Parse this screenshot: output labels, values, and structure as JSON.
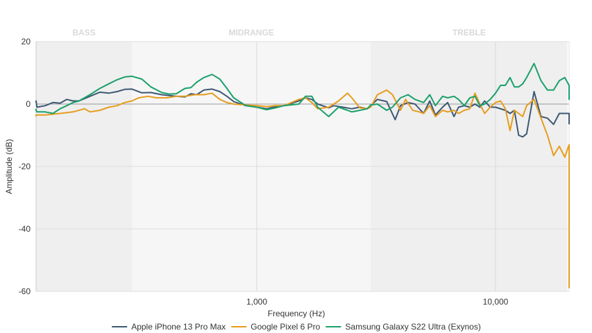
{
  "chart_data": {
    "type": "line",
    "title": "",
    "xlabel": "Frequency (Hz)",
    "ylabel": "Amplitude (dB)",
    "x_scale": "log",
    "xlim": [
      100,
      20000
    ],
    "ylim": [
      -60,
      20
    ],
    "y_ticks": [
      20,
      0,
      -20,
      -40,
      -60
    ],
    "x_ticks": [
      {
        "value": 1000,
        "label": "1,000"
      },
      {
        "value": 10000,
        "label": "10,000"
      }
    ],
    "bands": [
      {
        "label": "BASS",
        "from": 100,
        "to": 300,
        "shade": "#efefef"
      },
      {
        "label": "MIDRANGE",
        "from": 300,
        "to": 3000,
        "shade": "#f6f6f6"
      },
      {
        "label": "TREBLE",
        "from": 3000,
        "to": 20000,
        "shade": "#efefef"
      }
    ],
    "legend": "bottom-center",
    "series": [
      {
        "name": "Apple iPhone 13 Pro Max",
        "color": "#3d5873",
        "points": [
          [
            100,
            0.5
          ],
          [
            110,
            1
          ],
          [
            120,
            -1
          ],
          [
            130,
            -0.5
          ],
          [
            140,
            0.5
          ],
          [
            150,
            0.3
          ],
          [
            160,
            1.5
          ],
          [
            170,
            1
          ],
          [
            180,
            1
          ],
          [
            200,
            2.5
          ],
          [
            220,
            3.8
          ],
          [
            240,
            3.5
          ],
          [
            260,
            4
          ],
          [
            280,
            4.7
          ],
          [
            300,
            4.8
          ],
          [
            330,
            3.6
          ],
          [
            360,
            3.7
          ],
          [
            400,
            3
          ],
          [
            430,
            2.7
          ],
          [
            460,
            2.5
          ],
          [
            500,
            2.3
          ],
          [
            530,
            3.3
          ],
          [
            560,
            3
          ],
          [
            600,
            4.5
          ],
          [
            650,
            4.8
          ],
          [
            700,
            4
          ],
          [
            750,
            2.5
          ],
          [
            800,
            0.8
          ],
          [
            900,
            -0.5
          ],
          [
            1000,
            -1
          ],
          [
            1100,
            -1.5
          ],
          [
            1200,
            -0.8
          ],
          [
            1300,
            -0.5
          ],
          [
            1500,
            1
          ],
          [
            1600,
            2
          ],
          [
            1700,
            1.5
          ],
          [
            1800,
            0
          ],
          [
            2000,
            -1.2
          ],
          [
            2100,
            -0.5
          ],
          [
            2300,
            -1
          ],
          [
            2500,
            -1.5
          ],
          [
            2700,
            -1
          ],
          [
            2900,
            -1.5
          ],
          [
            3000,
            -0.5
          ],
          [
            3200,
            1.5
          ],
          [
            3500,
            0.8
          ],
          [
            3800,
            -5
          ],
          [
            4000,
            -0.5
          ],
          [
            4300,
            0.5
          ],
          [
            4600,
            0
          ],
          [
            5000,
            -3
          ],
          [
            5300,
            1
          ],
          [
            5600,
            -3.5
          ],
          [
            6000,
            -1
          ],
          [
            6300,
            0.5
          ],
          [
            6700,
            -4
          ],
          [
            7000,
            -1
          ],
          [
            7400,
            -0.5
          ],
          [
            7800,
            -1
          ],
          [
            8200,
            0
          ],
          [
            8600,
            -1
          ],
          [
            9000,
            1
          ],
          [
            9500,
            -1
          ],
          [
            10000,
            -1
          ],
          [
            11000,
            -2
          ],
          [
            11500,
            -3
          ],
          [
            12000,
            -2
          ],
          [
            12500,
            -10
          ],
          [
            13000,
            -10.5
          ],
          [
            13500,
            -9.5
          ],
          [
            14500,
            4
          ],
          [
            15500,
            -4
          ],
          [
            16500,
            -4.5
          ],
          [
            17500,
            -6.5
          ],
          [
            18500,
            -3
          ],
          [
            19500,
            -3
          ],
          [
            20500,
            -3
          ],
          [
            22000,
            -6.2
          ],
          [
            23000,
            -6.5
          ]
        ]
      },
      {
        "name": "Google Pixel 6 Pro",
        "color": "#e69d1e",
        "points": [
          [
            100,
            -4
          ],
          [
            110,
            -3.5
          ],
          [
            120,
            -3.5
          ],
          [
            130,
            -3.5
          ],
          [
            150,
            -3
          ],
          [
            170,
            -2.5
          ],
          [
            190,
            -1.5
          ],
          [
            200,
            -2.5
          ],
          [
            220,
            -2
          ],
          [
            240,
            -1
          ],
          [
            260,
            -0.5
          ],
          [
            280,
            0.5
          ],
          [
            300,
            1
          ],
          [
            320,
            2
          ],
          [
            350,
            2.5
          ],
          [
            380,
            2
          ],
          [
            420,
            2
          ],
          [
            460,
            2.5
          ],
          [
            500,
            2.5
          ],
          [
            550,
            3
          ],
          [
            600,
            3
          ],
          [
            650,
            3.5
          ],
          [
            700,
            1.5
          ],
          [
            750,
            0.5
          ],
          [
            800,
            0
          ],
          [
            900,
            -0.3
          ],
          [
            1000,
            -0.5
          ],
          [
            1100,
            -0.8
          ],
          [
            1200,
            -0.5
          ],
          [
            1300,
            -0.5
          ],
          [
            1500,
            1.5
          ],
          [
            1600,
            2
          ],
          [
            1700,
            0.5
          ],
          [
            1800,
            -1.5
          ],
          [
            2000,
            -1
          ],
          [
            2200,
            1
          ],
          [
            2400,
            3.5
          ],
          [
            2500,
            2
          ],
          [
            2700,
            -1.2
          ],
          [
            2900,
            -1.5
          ],
          [
            3000,
            -1
          ],
          [
            3200,
            3
          ],
          [
            3500,
            4.5
          ],
          [
            3700,
            3
          ],
          [
            4000,
            -2
          ],
          [
            4200,
            1.5
          ],
          [
            4500,
            -2
          ],
          [
            4800,
            -2.5
          ],
          [
            5000,
            -3
          ],
          [
            5300,
            -0.5
          ],
          [
            5600,
            -4
          ],
          [
            6000,
            -2
          ],
          [
            6300,
            -2.5
          ],
          [
            6700,
            -2
          ],
          [
            7000,
            -3
          ],
          [
            7400,
            -2
          ],
          [
            7800,
            -1.5
          ],
          [
            8200,
            3.5
          ],
          [
            8600,
            0
          ],
          [
            9000,
            -3
          ],
          [
            9500,
            -1
          ],
          [
            10000,
            0.5
          ],
          [
            10500,
            1
          ],
          [
            11000,
            -1.5
          ],
          [
            11500,
            -8.5
          ],
          [
            12000,
            -2
          ],
          [
            12500,
            -3
          ],
          [
            13000,
            -4
          ],
          [
            13500,
            -0.5
          ],
          [
            14500,
            1.5
          ],
          [
            15500,
            -4.5
          ],
          [
            16500,
            -10
          ],
          [
            17500,
            -16.5
          ],
          [
            18500,
            -13.5
          ],
          [
            19500,
            -17
          ],
          [
            20500,
            -13
          ],
          [
            21000,
            -59
          ]
        ]
      },
      {
        "name": "Samsung Galaxy S22 Ultra (Exynos)",
        "color": "#1aa06a",
        "points": [
          [
            100,
            -1.5
          ],
          [
            110,
            -2
          ],
          [
            120,
            -2.5
          ],
          [
            130,
            -2.5
          ],
          [
            140,
            -3
          ],
          [
            150,
            -1.5
          ],
          [
            160,
            -0.5
          ],
          [
            170,
            0.5
          ],
          [
            180,
            1
          ],
          [
            200,
            3
          ],
          [
            220,
            5
          ],
          [
            240,
            6.5
          ],
          [
            260,
            7.8
          ],
          [
            280,
            8.7
          ],
          [
            300,
            8.9
          ],
          [
            330,
            8
          ],
          [
            360,
            5.5
          ],
          [
            400,
            3.7
          ],
          [
            430,
            3.2
          ],
          [
            460,
            3.3
          ],
          [
            500,
            5
          ],
          [
            530,
            5.3
          ],
          [
            560,
            7
          ],
          [
            600,
            8.5
          ],
          [
            650,
            9.5
          ],
          [
            700,
            8
          ],
          [
            750,
            5
          ],
          [
            800,
            2
          ],
          [
            900,
            -0.5
          ],
          [
            1000,
            -1
          ],
          [
            1100,
            -1.8
          ],
          [
            1200,
            -1.2
          ],
          [
            1300,
            -0.5
          ],
          [
            1500,
            0
          ],
          [
            1600,
            2.5
          ],
          [
            1700,
            2.5
          ],
          [
            1800,
            -1
          ],
          [
            2000,
            -4
          ],
          [
            2200,
            -1
          ],
          [
            2400,
            -2
          ],
          [
            2500,
            -2.5
          ],
          [
            2700,
            -2
          ],
          [
            2900,
            -1.5
          ],
          [
            3000,
            -0.3
          ],
          [
            3200,
            0
          ],
          [
            3500,
            -2
          ],
          [
            3700,
            -1
          ],
          [
            4000,
            2
          ],
          [
            4300,
            3
          ],
          [
            4600,
            1.5
          ],
          [
            5000,
            0.5
          ],
          [
            5300,
            3
          ],
          [
            5600,
            -0.5
          ],
          [
            6000,
            2.5
          ],
          [
            6300,
            2
          ],
          [
            6700,
            2.5
          ],
          [
            7000,
            1.5
          ],
          [
            7400,
            -0.5
          ],
          [
            7800,
            2
          ],
          [
            8200,
            2.5
          ],
          [
            8600,
            -0.5
          ],
          [
            9000,
            0
          ],
          [
            9500,
            1.5
          ],
          [
            10000,
            3.5
          ],
          [
            10500,
            6
          ],
          [
            11000,
            6
          ],
          [
            11500,
            8.5
          ],
          [
            12000,
            5.5
          ],
          [
            12500,
            5.5
          ],
          [
            13000,
            6.5
          ],
          [
            13500,
            8.5
          ],
          [
            14500,
            13
          ],
          [
            15500,
            7.5
          ],
          [
            16500,
            4.5
          ],
          [
            17500,
            4.5
          ],
          [
            18500,
            7.5
          ],
          [
            19500,
            8.5
          ],
          [
            20500,
            6
          ],
          [
            21500,
            1.5
          ],
          [
            23000,
            5
          ]
        ]
      }
    ]
  }
}
